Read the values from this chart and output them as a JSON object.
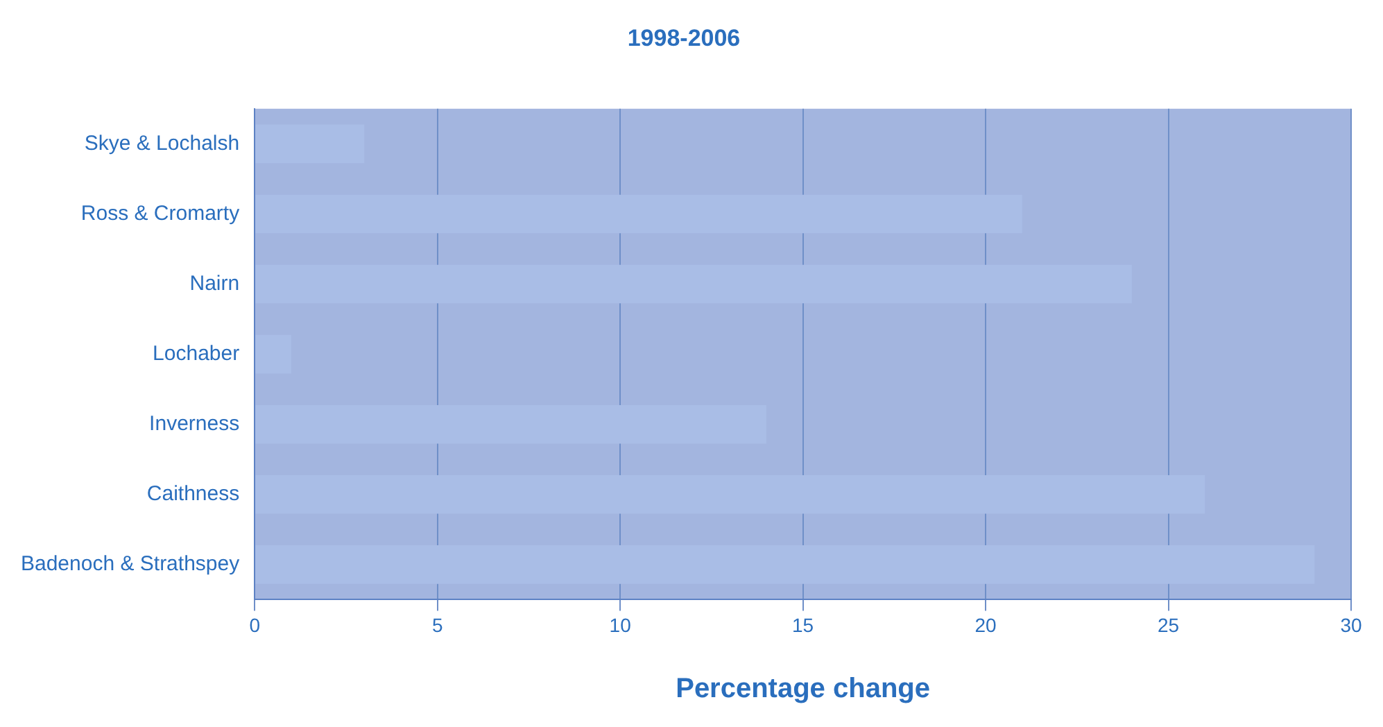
{
  "chart_data": {
    "type": "bar",
    "orientation": "horizontal",
    "title": "1998-2006",
    "xlabel": "Percentage change",
    "categories": [
      "Skye & Lochalsh",
      "Ross & Cromarty",
      "Nairn",
      "Lochaber",
      "Inverness",
      "Caithness",
      "Badenoch & Strathspey"
    ],
    "values": [
      3,
      21,
      24,
      1,
      14,
      26,
      29
    ],
    "color": "#a9bde6",
    "xlim": [
      0,
      30
    ],
    "xticks": [
      0,
      5,
      10,
      15,
      20,
      25,
      30
    ],
    "grid": "x",
    "legend": false
  }
}
